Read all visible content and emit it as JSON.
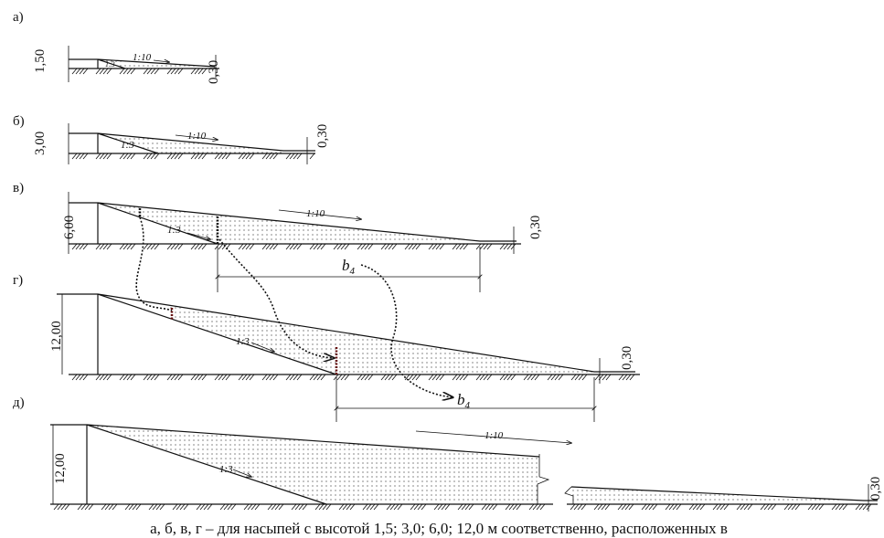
{
  "panels": [
    {
      "label": "а)",
      "height": "1,50",
      "slope_top": "1:10",
      "slope_side": "1:3",
      "base": "0,30"
    },
    {
      "label": "б)",
      "height": "3,00",
      "slope_top": "1:10",
      "slope_side": "1:3",
      "base": "0,30"
    },
    {
      "label": "в)",
      "height": "6,00",
      "slope_top": "1:10",
      "slope_side": "1:3",
      "base": "0,30",
      "dim": {
        "b": "b",
        "sub": "4"
      }
    },
    {
      "label": "г)",
      "height": "12,00",
      "slope_side": "1:3",
      "base": "0,30",
      "dim": {
        "b": "b",
        "sub": "4"
      }
    },
    {
      "label": "д)",
      "height": "12,00",
      "slope_top": "1:10",
      "slope_side": "1:3",
      "base": "0,30"
    }
  ],
  "caption": "а, б, в, г – для насыпей с высотой 1,5; 3,0; 6,0; 12,0 м соответственно, расположенных в"
}
